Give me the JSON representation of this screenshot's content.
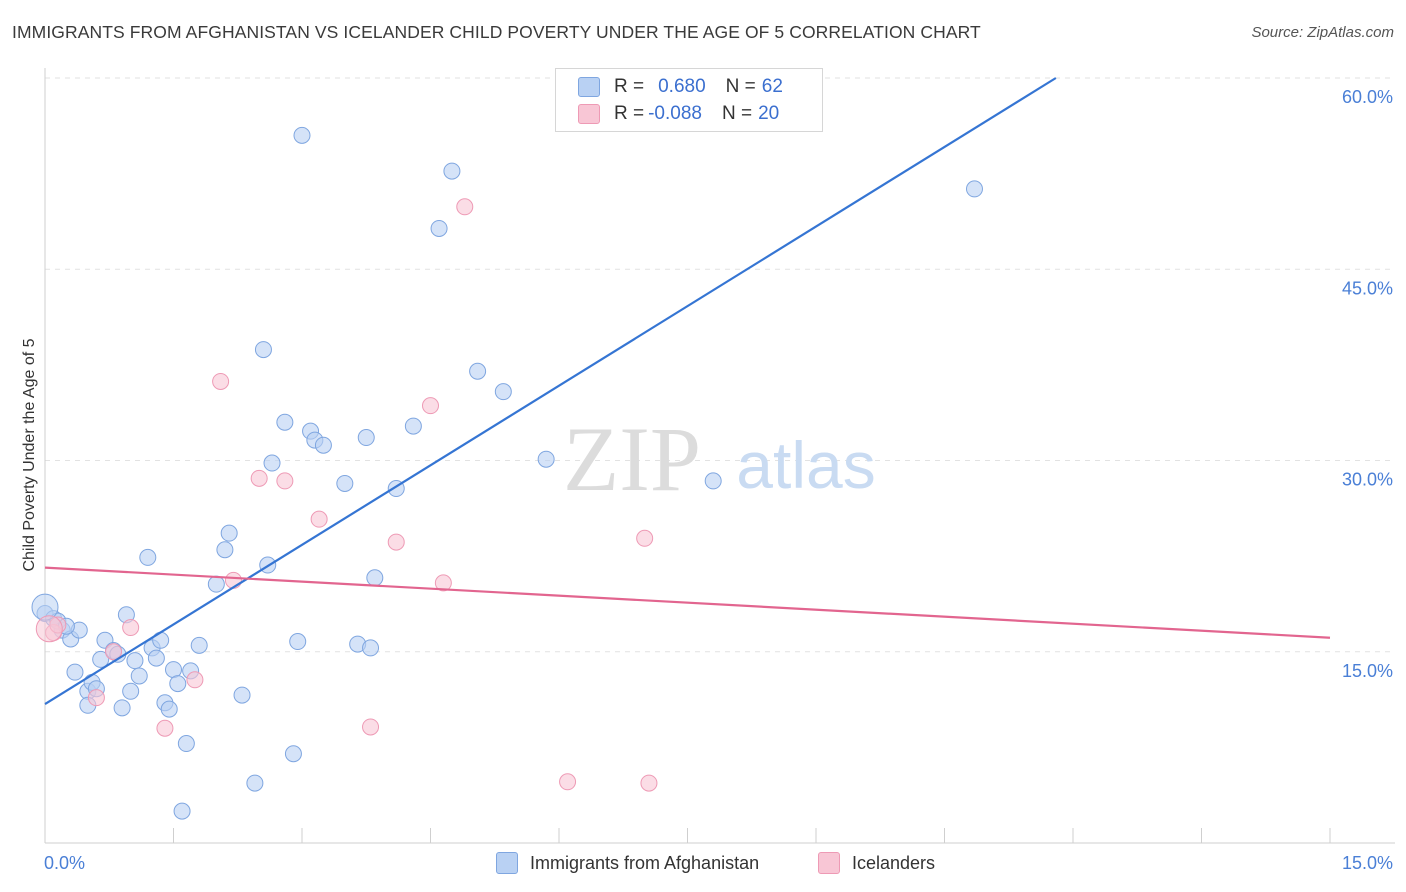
{
  "title": "IMMIGRANTS FROM AFGHANISTAN VS ICELANDER CHILD POVERTY UNDER THE AGE OF 5 CORRELATION CHART",
  "source": "Source: ZipAtlas.com",
  "watermark": {
    "zip": "ZIP",
    "atlas": "atlas"
  },
  "legend": {
    "rows": [
      {
        "r_label": "R =",
        "r_value": "0.680",
        "n_label": "N =",
        "n_value": "62"
      },
      {
        "r_label": "R =",
        "r_value": "-0.088",
        "n_label": "N =",
        "n_value": "20"
      }
    ]
  },
  "bottom_legend": {
    "series1": "Immigrants from Afghanistan",
    "series2": "Icelanders"
  },
  "colors": {
    "blue_fill": "#b9d1f3",
    "blue_stroke": "#7fa6e0",
    "blue_line": "#3575d3",
    "pink_fill": "#f8c6d5",
    "pink_stroke": "#ee9ab5",
    "pink_line": "#e2658f",
    "tick_text": "#4a7fd6"
  },
  "chart_data": {
    "type": "scatter",
    "title": "IMMIGRANTS FROM AFGHANISTAN VS ICELANDER CHILD POVERTY UNDER THE AGE OF 5 CORRELATION CHART",
    "xlabel": "",
    "ylabel": "Child Poverty Under the Age of 5",
    "xlim": [
      0,
      15
    ],
    "ylim": [
      0,
      60
    ],
    "x_tick_labels": [
      "0.0%",
      "15.0%"
    ],
    "y_ticks": [
      15,
      30,
      45,
      60
    ],
    "y_tick_labels": [
      "15.0%",
      "30.0%",
      "45.0%",
      "60.0%"
    ],
    "series": [
      {
        "name": "Immigrants from Afghanistan",
        "color": "#7fa6e0",
        "trend": {
          "x": [
            0,
            11.8
          ],
          "y": [
            10.9,
            60.0
          ]
        },
        "points": [
          [
            0.0,
            18.0
          ],
          [
            0.1,
            17.6
          ],
          [
            0.2,
            16.7
          ],
          [
            0.3,
            16.0
          ],
          [
            0.35,
            13.4
          ],
          [
            0.4,
            16.7
          ],
          [
            0.5,
            11.9
          ],
          [
            0.5,
            10.8
          ],
          [
            0.55,
            12.6
          ],
          [
            0.6,
            12.1
          ],
          [
            0.65,
            14.4
          ],
          [
            0.7,
            15.9
          ],
          [
            0.8,
            15.1
          ],
          [
            0.85,
            14.8
          ],
          [
            0.9,
            10.6
          ],
          [
            0.95,
            17.9
          ],
          [
            1.0,
            11.9
          ],
          [
            1.05,
            14.3
          ],
          [
            1.1,
            13.1
          ],
          [
            1.2,
            22.4
          ],
          [
            1.25,
            15.3
          ],
          [
            1.3,
            14.5
          ],
          [
            1.35,
            15.9
          ],
          [
            1.4,
            11.0
          ],
          [
            1.45,
            10.5
          ],
          [
            1.5,
            13.6
          ],
          [
            1.55,
            12.5
          ],
          [
            1.6,
            2.5
          ],
          [
            1.65,
            7.8
          ],
          [
            1.7,
            13.5
          ],
          [
            1.8,
            15.5
          ],
          [
            2.0,
            20.3
          ],
          [
            2.1,
            23.0
          ],
          [
            2.15,
            24.3
          ],
          [
            2.3,
            11.6
          ],
          [
            2.45,
            4.7
          ],
          [
            2.55,
            38.7
          ],
          [
            2.6,
            21.8
          ],
          [
            2.65,
            29.8
          ],
          [
            2.8,
            33.0
          ],
          [
            2.9,
            7.0
          ],
          [
            2.95,
            15.8
          ],
          [
            3.0,
            55.5
          ],
          [
            3.1,
            32.3
          ],
          [
            3.15,
            31.6
          ],
          [
            3.25,
            31.2
          ],
          [
            3.5,
            28.2
          ],
          [
            3.65,
            15.6
          ],
          [
            3.75,
            31.8
          ],
          [
            3.8,
            15.3
          ],
          [
            3.85,
            20.8
          ],
          [
            4.1,
            27.8
          ],
          [
            4.3,
            32.7
          ],
          [
            4.6,
            48.2
          ],
          [
            4.75,
            52.7
          ],
          [
            5.05,
            37.0
          ],
          [
            5.35,
            35.4
          ],
          [
            5.85,
            30.1
          ],
          [
            7.8,
            28.4
          ],
          [
            10.85,
            51.3
          ],
          [
            0.15,
            17.4
          ],
          [
            0.25,
            17.0
          ]
        ]
      },
      {
        "name": "Icelanders",
        "color": "#ee9ab5",
        "trend": {
          "x": [
            0,
            15
          ],
          "y": [
            21.6,
            16.1
          ]
        },
        "points": [
          [
            0.1,
            16.5
          ],
          [
            0.15,
            17.1
          ],
          [
            0.6,
            11.4
          ],
          [
            0.8,
            15.0
          ],
          [
            1.0,
            16.9
          ],
          [
            1.4,
            9.0
          ],
          [
            1.75,
            12.8
          ],
          [
            2.05,
            36.2
          ],
          [
            2.2,
            20.6
          ],
          [
            2.5,
            28.6
          ],
          [
            2.8,
            28.4
          ],
          [
            3.2,
            25.4
          ],
          [
            3.8,
            9.1
          ],
          [
            4.1,
            23.6
          ],
          [
            4.5,
            34.3
          ],
          [
            4.65,
            20.4
          ],
          [
            4.9,
            49.9
          ],
          [
            6.1,
            4.8
          ],
          [
            7.0,
            23.9
          ],
          [
            7.05,
            4.7
          ]
        ]
      }
    ],
    "legend": [
      {
        "name": "Immigrants from Afghanistan",
        "R": "0.680",
        "N": "62"
      },
      {
        "name": "Icelanders",
        "R": "-0.088",
        "N": "20"
      }
    ]
  }
}
